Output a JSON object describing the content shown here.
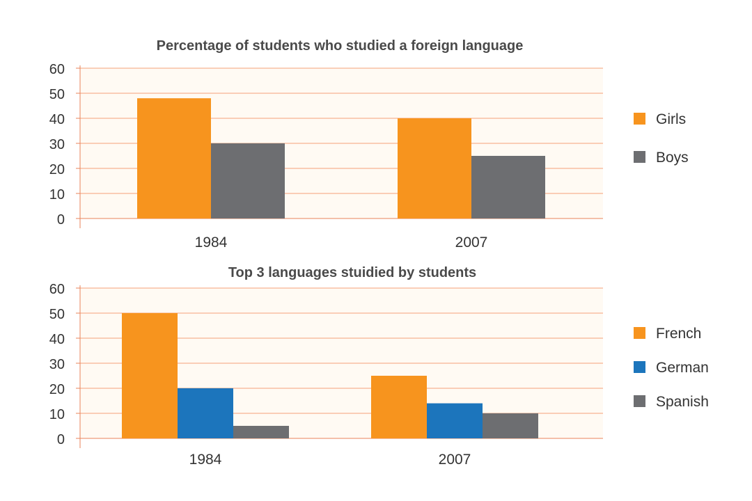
{
  "colors": {
    "grid": "#f4a07a",
    "axis": "#e8835a",
    "plot_bg": "#fffaf3"
  },
  "chart_data": [
    {
      "type": "bar",
      "title": "Percentage of students who studied a foreign language",
      "categories": [
        "1984",
        "2007"
      ],
      "series": [
        {
          "name": "Girls",
          "values": [
            48,
            40
          ],
          "color": "#f7941e"
        },
        {
          "name": "Boys",
          "values": [
            30,
            25
          ],
          "color": "#6d6e71"
        }
      ],
      "yticks": [
        "0",
        "10",
        "20",
        "30",
        "40",
        "50",
        "60"
      ],
      "ylim": [
        0,
        60
      ],
      "grid": true,
      "legend": "right"
    },
    {
      "type": "bar",
      "title": "Top 3 languages stuidied by students",
      "categories": [
        "1984",
        "2007"
      ],
      "series": [
        {
          "name": "French",
          "values": [
            50,
            25
          ],
          "color": "#f7941e"
        },
        {
          "name": "German",
          "values": [
            20,
            14
          ],
          "color": "#1c75bc"
        },
        {
          "name": "Spanish",
          "values": [
            5,
            10
          ],
          "color": "#6d6e71"
        }
      ],
      "yticks": [
        "0",
        "10",
        "20",
        "30",
        "40",
        "50",
        "60"
      ],
      "ylim": [
        0,
        60
      ],
      "grid": true,
      "legend": "right"
    }
  ]
}
